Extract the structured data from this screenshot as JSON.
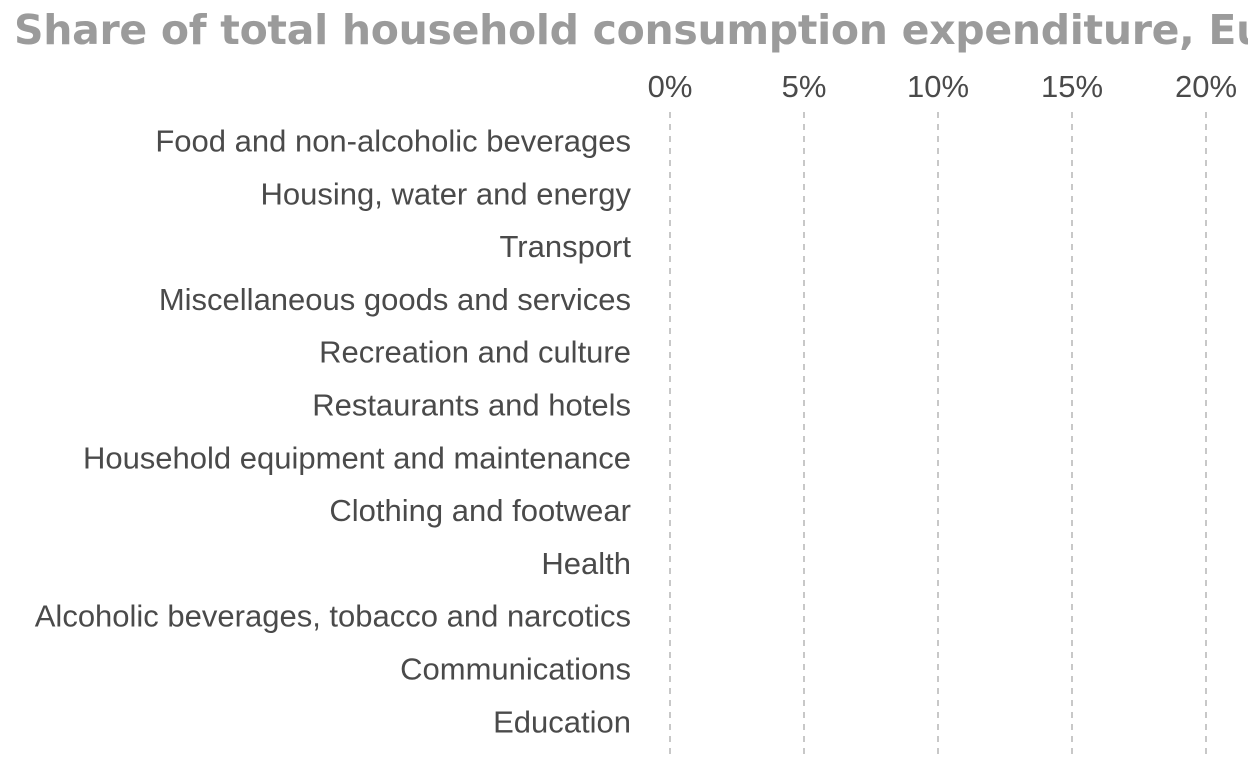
{
  "chart_data": {
    "type": "bar",
    "orientation": "horizontal",
    "title": "Share of total household consumption expenditure, Eu",
    "xlabel": "",
    "ylabel": "",
    "categories": [
      "Food and non-alcoholic beverages",
      "Housing, water and energy",
      "Transport",
      "Miscellaneous goods and services",
      "Recreation and culture",
      "Restaurants and hotels",
      "Household equipment and maintenance",
      "Clothing and footwear",
      "Health",
      "Alcoholic beverages, tobacco and narcotics",
      "Communications",
      "Education"
    ],
    "x_ticks": [
      "0%",
      "5%",
      "10%",
      "15%",
      "20%"
    ],
    "x_tick_values": [
      0,
      5,
      10,
      15,
      20
    ],
    "xlim": [
      0,
      20
    ],
    "grid": true,
    "grid_style": "dashed",
    "colors": {
      "title": "#9b9b9b",
      "labels": "#4a4a4a",
      "grid": "#c8c8c8"
    }
  }
}
